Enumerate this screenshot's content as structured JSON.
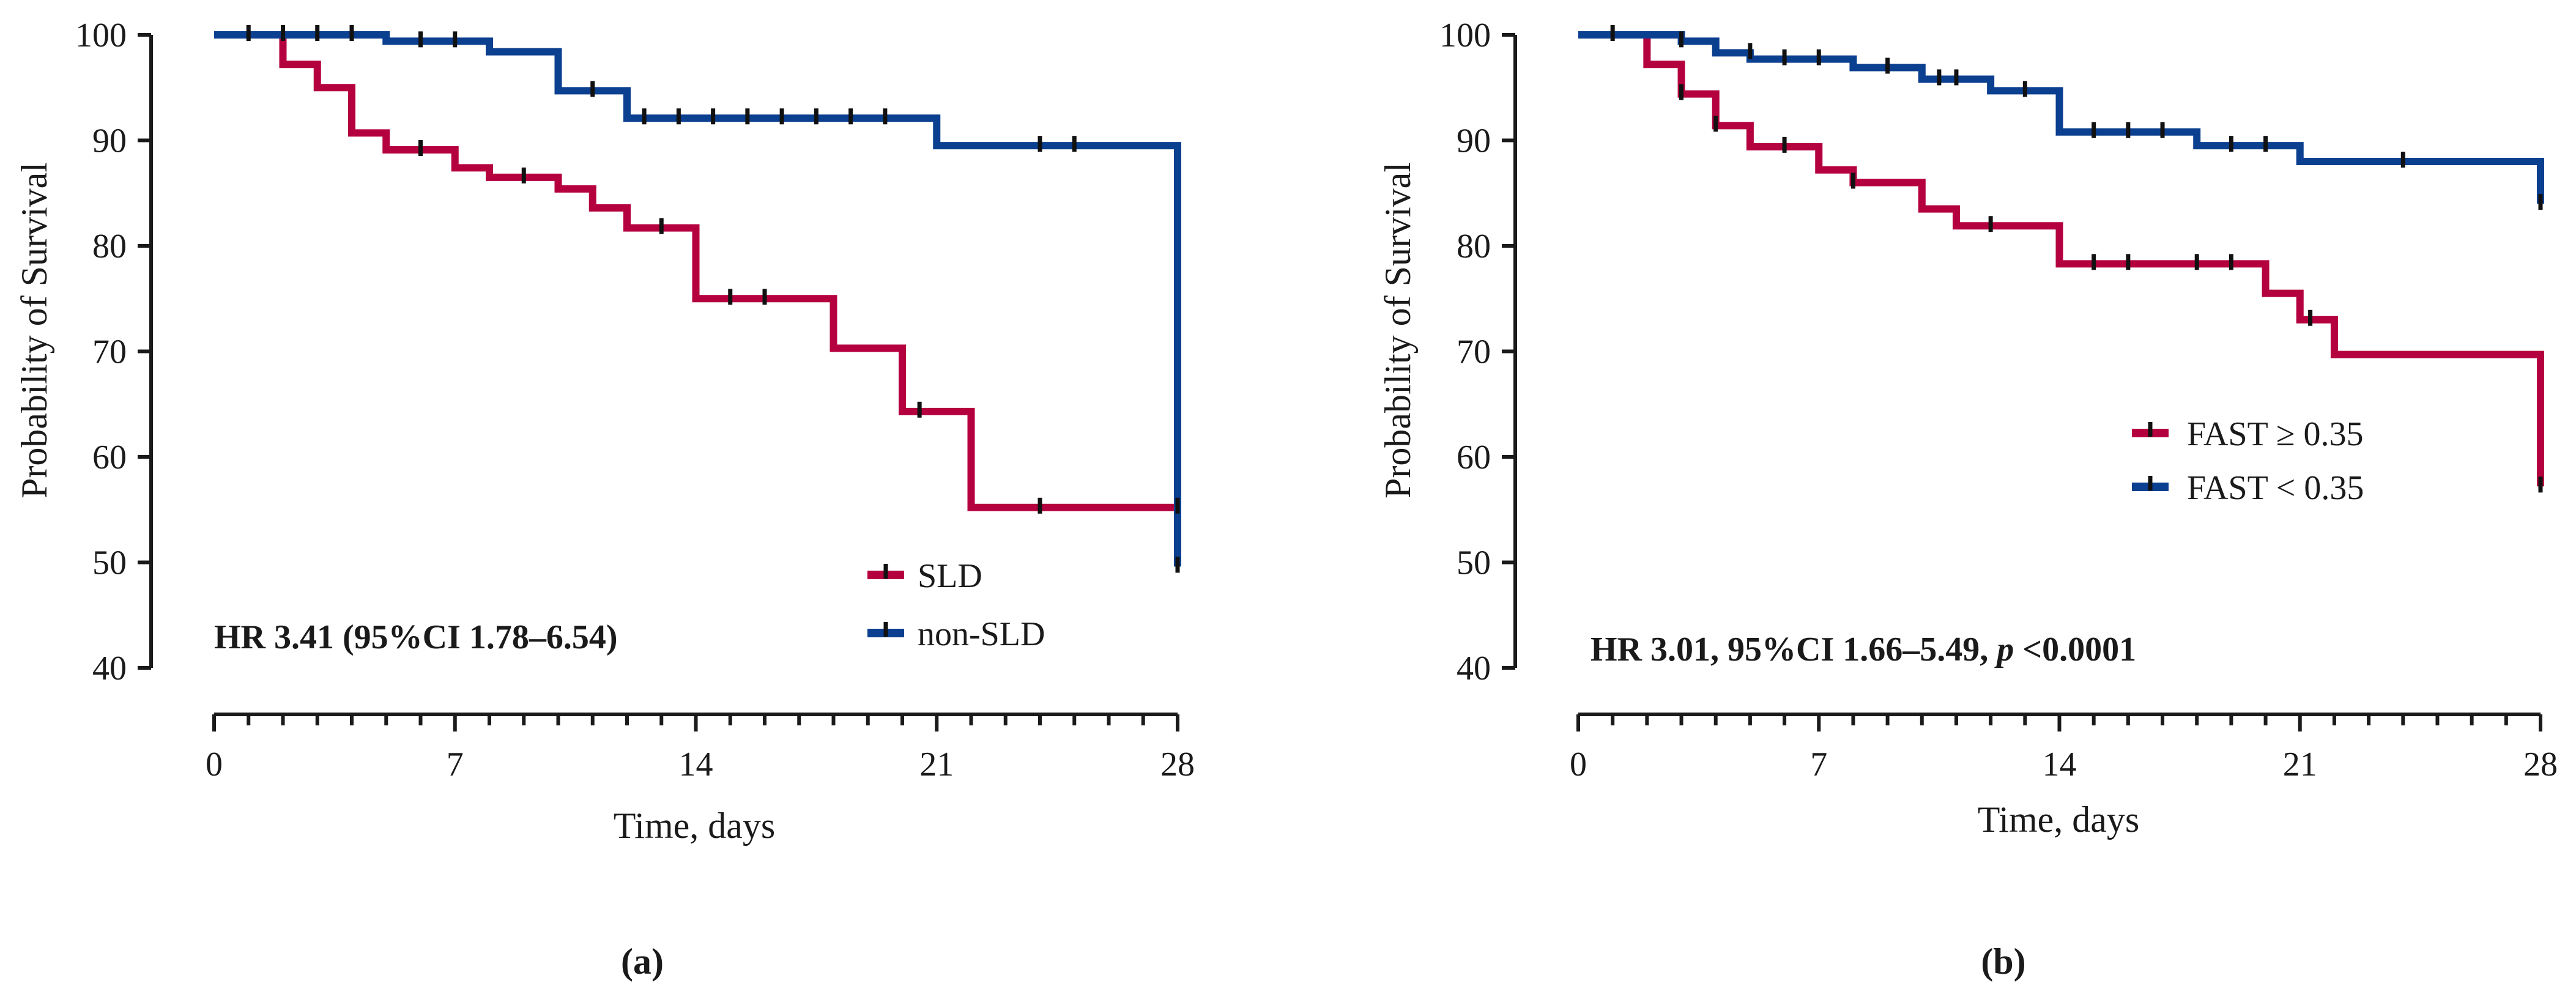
{
  "figure": {
    "panel_labels": [
      "(a)",
      "(b)"
    ]
  },
  "colors": {
    "series_a": "#b5003f",
    "series_b": "#0b3f8f",
    "axis": "#1a1a1a",
    "censor": "#111111"
  },
  "chart_data": [
    {
      "type": "line",
      "subtype": "kaplan-meier step",
      "panel": "(a)",
      "title": "",
      "xlabel": "Time, days",
      "ylabel": "Probability of Survival",
      "xlim": [
        0,
        28
      ],
      "ylim": [
        40,
        100
      ],
      "xticks": [
        0,
        7,
        14,
        21,
        28
      ],
      "yticks": [
        40,
        50,
        60,
        70,
        80,
        90,
        100
      ],
      "annotation": "HR 3.41 (95%CI 1.78–6.54)",
      "legend_position": "bottom-right",
      "series": [
        {
          "name": "SLD",
          "color_key": "series_a",
          "steps": [
            [
              0,
              100
            ],
            [
              2,
              97.2
            ],
            [
              3,
              95
            ],
            [
              4,
              90.7
            ],
            [
              5,
              89.1
            ],
            [
              7,
              87.4
            ],
            [
              8,
              86.5
            ],
            [
              10,
              85.4
            ],
            [
              11,
              83.6
            ],
            [
              12,
              81.7
            ],
            [
              14,
              75
            ],
            [
              18,
              70.3
            ],
            [
              20,
              64.3
            ],
            [
              22,
              55.2
            ],
            [
              28,
              55.2
            ]
          ],
          "censored": [
            [
              6,
              89.1
            ],
            [
              9,
              86.5
            ],
            [
              13,
              81.7
            ],
            [
              15,
              75
            ],
            [
              16,
              75
            ],
            [
              20.5,
              64.3
            ],
            [
              24,
              55.2
            ],
            [
              28,
              55.2
            ]
          ]
        },
        {
          "name": "non-SLD",
          "color_key": "series_b",
          "steps": [
            [
              0,
              100
            ],
            [
              5,
              99.4
            ],
            [
              8,
              98.4
            ],
            [
              10,
              94.7
            ],
            [
              12,
              92.1
            ],
            [
              21,
              89.5
            ],
            [
              28,
              89.5
            ],
            [
              28,
              49.6
            ]
          ],
          "censored": [
            [
              1,
              100
            ],
            [
              2,
              100
            ],
            [
              3,
              100
            ],
            [
              4,
              100
            ],
            [
              6,
              99.4
            ],
            [
              7,
              99.4
            ],
            [
              11,
              94.7
            ],
            [
              12.5,
              92.1
            ],
            [
              13.5,
              92.1
            ],
            [
              14.5,
              92.1
            ],
            [
              15.5,
              92.1
            ],
            [
              16.5,
              92.1
            ],
            [
              17.5,
              92.1
            ],
            [
              18.5,
              92.1
            ],
            [
              19.5,
              92.1
            ],
            [
              24,
              89.5
            ],
            [
              25,
              89.5
            ],
            [
              28,
              49.6
            ]
          ]
        }
      ]
    },
    {
      "type": "line",
      "subtype": "kaplan-meier step",
      "panel": "(b)",
      "title": "",
      "xlabel": "Time, days",
      "ylabel": "Probability of Survival",
      "xlim": [
        0,
        28
      ],
      "ylim": [
        40,
        100
      ],
      "xticks": [
        0,
        7,
        14,
        21,
        28
      ],
      "yticks": [
        40,
        50,
        60,
        70,
        80,
        90,
        100
      ],
      "annotation_parts": [
        "HR 3.01, 95%CI 1.66–5.49, ",
        "p",
        " <0.0001"
      ],
      "legend_position": "right",
      "series": [
        {
          "name": "FAST ≥ 0.35",
          "color_key": "series_a",
          "steps": [
            [
              0,
              100
            ],
            [
              2,
              97.2
            ],
            [
              3,
              94.4
            ],
            [
              4,
              91.4
            ],
            [
              5,
              89.4
            ],
            [
              7,
              87.2
            ],
            [
              8,
              86
            ],
            [
              10,
              83.5
            ],
            [
              11,
              81.9
            ],
            [
              14,
              78.3
            ],
            [
              20,
              75.5
            ],
            [
              21,
              73
            ],
            [
              22,
              69.7
            ],
            [
              28,
              69.7
            ],
            [
              28,
              57.2
            ]
          ],
          "censored": [
            [
              3,
              94.4
            ],
            [
              4,
              91.4
            ],
            [
              6,
              89.4
            ],
            [
              8,
              86
            ],
            [
              12,
              81.9
            ],
            [
              15,
              78.3
            ],
            [
              16,
              78.3
            ],
            [
              18,
              78.3
            ],
            [
              19,
              78.3
            ],
            [
              21.3,
              73
            ],
            [
              28,
              57.2
            ]
          ]
        },
        {
          "name": "FAST < 0.35",
          "color_key": "series_b",
          "steps": [
            [
              0,
              100
            ],
            [
              3,
              99.4
            ],
            [
              4,
              98.3
            ],
            [
              5,
              97.7
            ],
            [
              8,
              96.9
            ],
            [
              10,
              95.8
            ],
            [
              12,
              94.7
            ],
            [
              14,
              90.8
            ],
            [
              18,
              89.5
            ],
            [
              21,
              88
            ],
            [
              28,
              88
            ],
            [
              28,
              84
            ]
          ],
          "censored": [
            [
              1,
              100
            ],
            [
              3,
              99.4
            ],
            [
              5,
              98.3
            ],
            [
              6,
              97.7
            ],
            [
              7,
              97.7
            ],
            [
              9,
              96.9
            ],
            [
              10.5,
              95.8
            ],
            [
              11,
              95.8
            ],
            [
              13,
              94.7
            ],
            [
              15,
              90.8
            ],
            [
              16,
              90.8
            ],
            [
              17,
              90.8
            ],
            [
              19,
              89.5
            ],
            [
              20,
              89.5
            ],
            [
              24,
              88
            ],
            [
              28,
              84
            ]
          ]
        }
      ]
    }
  ]
}
